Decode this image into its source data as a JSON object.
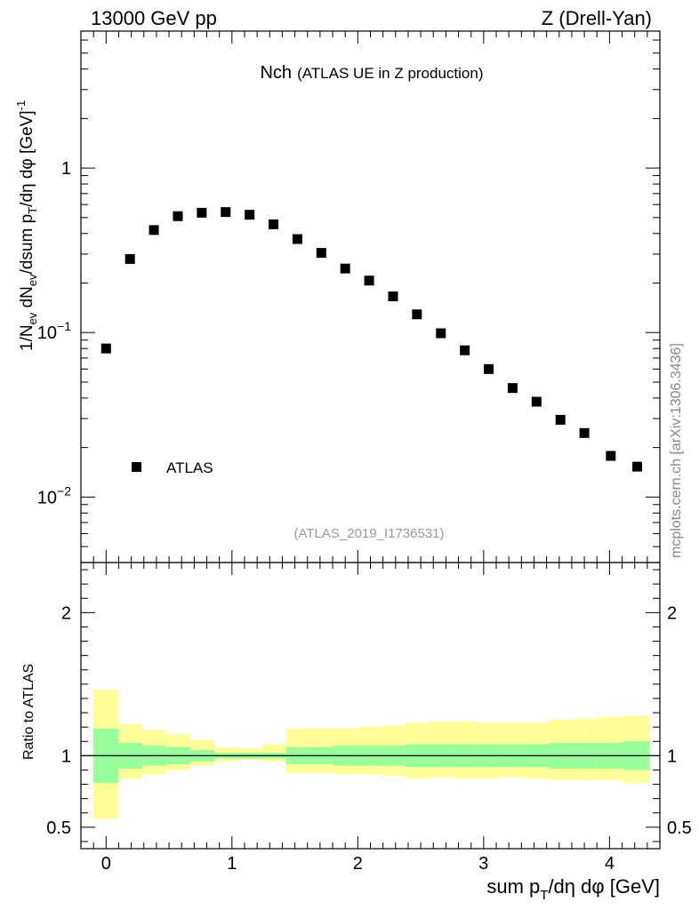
{
  "header": {
    "left": "13000 GeV pp",
    "right": "Z (Drell-Yan)"
  },
  "watermark": "mcplots.cern.ch [arXiv:1306.3436]",
  "chart_data": [
    {
      "panel": "main",
      "type": "scatter",
      "title_main": "Nch",
      "title_sub": "(ATLAS UE in Z production)",
      "analysis_tag": "(ATLAS_2019_I1736531)",
      "ylabel": "1/N_ev dN_ev/dsum p_T/dη dφ [GeV]^-1",
      "xlabel": "",
      "log_y": true,
      "xlim": [
        -0.2,
        4.4
      ],
      "ylim": [
        0.004,
        6.8
      ],
      "ytick_labels": {
        "major": [
          "10^-2",
          "10^-1",
          "1"
        ]
      },
      "legend": {
        "position": "lower-left",
        "entries": [
          "ATLAS"
        ]
      },
      "marker_color": "#000000",
      "series": [
        {
          "name": "ATLAS",
          "x": [
            0.0,
            0.19,
            0.38,
            0.57,
            0.76,
            0.95,
            1.14,
            1.33,
            1.52,
            1.71,
            1.9,
            2.09,
            2.28,
            2.47,
            2.66,
            2.85,
            3.04,
            3.23,
            3.42,
            3.61,
            3.8,
            4.01,
            4.22
          ],
          "y": [
            0.08,
            0.28,
            0.42,
            0.51,
            0.535,
            0.54,
            0.52,
            0.455,
            0.37,
            0.305,
            0.245,
            0.207,
            0.166,
            0.129,
            0.099,
            0.078,
            0.06,
            0.046,
            0.038,
            0.0295,
            0.0245,
            0.0178,
            0.0153
          ]
        }
      ]
    },
    {
      "panel": "ratio",
      "type": "area",
      "ylabel": "Ratio to ATLAS",
      "xlabel": "sum p_T/dη dφ [GeV]",
      "xlim": [
        -0.2,
        4.4
      ],
      "ylim": [
        0.35,
        2.35
      ],
      "x_ticks": [
        "0",
        "1",
        "2",
        "3",
        "4"
      ],
      "y_ticks": [
        "0.5",
        "1",
        "2"
      ],
      "reference_line": 1.0,
      "band_colors": {
        "outer": "#ffff99",
        "inner": "#99ff99",
        "line": "#000000"
      },
      "bins": {
        "edges": [
          -0.1,
          0.1,
          0.29,
          0.48,
          0.67,
          0.86,
          1.05,
          1.24,
          1.43,
          1.62,
          1.81,
          2.0,
          2.19,
          2.38,
          2.57,
          2.76,
          2.95,
          3.14,
          3.33,
          3.52,
          3.71,
          3.9,
          4.11,
          4.32
        ],
        "outer_low": [
          0.56,
          0.84,
          0.87,
          0.9,
          0.93,
          0.96,
          0.97,
          0.96,
          0.88,
          0.88,
          0.87,
          0.87,
          0.86,
          0.84,
          0.85,
          0.84,
          0.84,
          0.85,
          0.84,
          0.83,
          0.83,
          0.83,
          0.81
        ],
        "outer_high": [
          1.46,
          1.22,
          1.18,
          1.15,
          1.11,
          1.06,
          1.05,
          1.08,
          1.19,
          1.19,
          1.19,
          1.2,
          1.21,
          1.23,
          1.24,
          1.24,
          1.23,
          1.23,
          1.23,
          1.25,
          1.26,
          1.27,
          1.28
        ],
        "inner_low": [
          0.81,
          0.91,
          0.93,
          0.94,
          0.96,
          0.98,
          0.98,
          0.98,
          0.94,
          0.94,
          0.93,
          0.93,
          0.93,
          0.92,
          0.92,
          0.92,
          0.92,
          0.92,
          0.92,
          0.91,
          0.91,
          0.91,
          0.9
        ]
      }
    }
  ]
}
